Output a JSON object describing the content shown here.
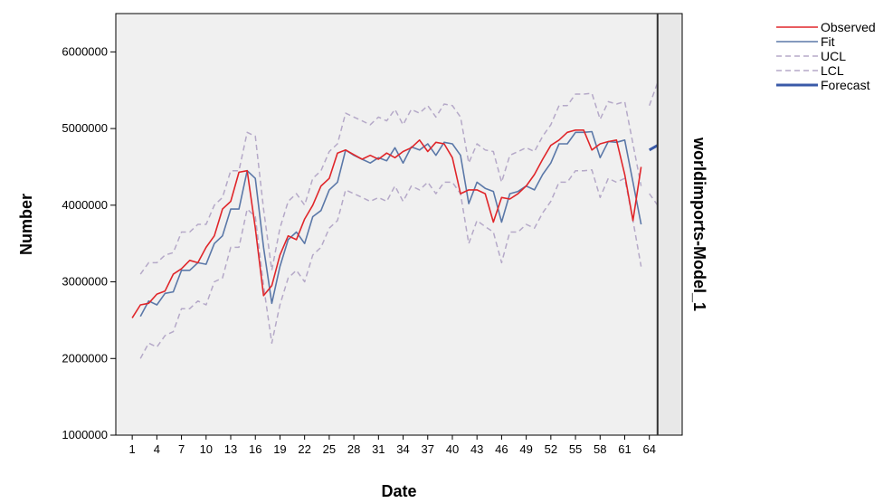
{
  "chart_data": {
    "type": "line",
    "xlabel": "Date",
    "ylabel": "Number",
    "panel_label": "worldimports-Model_1",
    "xlim": [
      -1,
      68
    ],
    "ylim": [
      1000000,
      6500000
    ],
    "x_ticks": [
      1,
      4,
      7,
      10,
      13,
      16,
      19,
      22,
      25,
      28,
      31,
      34,
      37,
      40,
      43,
      46,
      49,
      52,
      55,
      58,
      61,
      64
    ],
    "y_ticks": [
      1000000,
      2000000,
      3000000,
      4000000,
      5000000,
      6000000
    ],
    "forecast_divider_x": 65,
    "grid": false,
    "legend_position": "top-right",
    "colors": {
      "observed": "#e0262a",
      "fit": "#5b78a8",
      "ucl": "#b5a9c8",
      "lcl": "#b5a9c8",
      "forecast": "#3a5aa8",
      "plot_bg": "#f0f0f0",
      "panel_bg": "#e8e8e8"
    },
    "legend": [
      {
        "label": "Observed",
        "style": "solid",
        "color": "#e0262a",
        "width": 1.5
      },
      {
        "label": "Fit",
        "style": "solid",
        "color": "#5b78a8",
        "width": 1.5
      },
      {
        "label": "UCL",
        "style": "dashed",
        "color": "#b5a9c8",
        "width": 1.5
      },
      {
        "label": "LCL",
        "style": "dashed",
        "color": "#b5a9c8",
        "width": 1.5
      },
      {
        "label": "Forecast",
        "style": "solid",
        "color": "#3a5aa8",
        "width": 3
      }
    ],
    "series": [
      {
        "name": "Observed",
        "x_start": 1,
        "values": [
          2530000,
          2700000,
          2720000,
          2840000,
          2880000,
          3100000,
          3170000,
          3280000,
          3250000,
          3450000,
          3600000,
          3950000,
          4050000,
          4430000,
          4450000,
          3700000,
          2820000,
          2950000,
          3350000,
          3600000,
          3550000,
          3820000,
          4000000,
          4250000,
          4350000,
          4680000,
          4720000,
          4660000,
          4600000,
          4650000,
          4600000,
          4680000,
          4620000,
          4700000,
          4750000,
          4850000,
          4700000,
          4820000,
          4800000,
          4620000,
          4150000,
          4200000,
          4200000,
          4150000,
          3780000,
          4100000,
          4080000,
          4150000,
          4250000,
          4400000,
          4600000,
          4780000,
          4850000,
          4950000,
          4980000,
          4980000,
          4720000,
          4800000,
          4830000,
          4850000,
          4400000,
          3800000,
          4500000
        ]
      },
      {
        "name": "Fit",
        "x_start": 2,
        "values": [
          2550000,
          2750000,
          2700000,
          2850000,
          2870000,
          3150000,
          3150000,
          3250000,
          3230000,
          3500000,
          3600000,
          3950000,
          3950000,
          4450000,
          4350000,
          3450000,
          2720000,
          3200000,
          3550000,
          3650000,
          3500000,
          3850000,
          3930000,
          4200000,
          4300000,
          4720000,
          4650000,
          4600000,
          4550000,
          4620000,
          4580000,
          4750000,
          4550000,
          4760000,
          4720000,
          4800000,
          4650000,
          4820000,
          4800000,
          4650000,
          4020000,
          4300000,
          4220000,
          4180000,
          3780000,
          4150000,
          4180000,
          4250000,
          4200000,
          4400000,
          4550000,
          4800000,
          4800000,
          4950000,
          4950000,
          4960000,
          4620000,
          4830000,
          4820000,
          4850000,
          4300000,
          3750000
        ]
      },
      {
        "name": "UCL",
        "x_start": 2,
        "values": [
          3100000,
          3250000,
          3250000,
          3350000,
          3380000,
          3650000,
          3650000,
          3750000,
          3750000,
          4000000,
          4100000,
          4450000,
          4450000,
          4950000,
          4900000,
          3950000,
          3150000,
          3700000,
          4050000,
          4150000,
          4000000,
          4350000,
          4450000,
          4700000,
          4800000,
          5200000,
          5150000,
          5100000,
          5050000,
          5150000,
          5100000,
          5250000,
          5050000,
          5250000,
          5200000,
          5300000,
          5150000,
          5320000,
          5300000,
          5150000,
          4550000,
          4800000,
          4720000,
          4700000,
          4300000,
          4650000,
          4700000,
          4750000,
          4700000,
          4900000,
          5050000,
          5300000,
          5300000,
          5450000,
          5450000,
          5460000,
          5120000,
          5350000,
          5320000,
          5350000,
          4800000,
          4250000
        ]
      },
      {
        "name": "LCL",
        "x_start": 2,
        "values": [
          2000000,
          2200000,
          2150000,
          2300000,
          2350000,
          2650000,
          2650000,
          2750000,
          2700000,
          3000000,
          3050000,
          3450000,
          3450000,
          3950000,
          3850000,
          2950000,
          2200000,
          2700000,
          3050000,
          3150000,
          3000000,
          3350000,
          3450000,
          3700000,
          3800000,
          4200000,
          4150000,
          4100000,
          4050000,
          4100000,
          4050000,
          4250000,
          4050000,
          4250000,
          4200000,
          4300000,
          4150000,
          4300000,
          4300000,
          4150000,
          3500000,
          3800000,
          3720000,
          3650000,
          3250000,
          3650000,
          3650000,
          3750000,
          3700000,
          3900000,
          4050000,
          4300000,
          4300000,
          4450000,
          4450000,
          4460000,
          4100000,
          4350000,
          4300000,
          4350000,
          3800000,
          3200000
        ]
      },
      {
        "name": "Forecast",
        "x_start": 64,
        "values": [
          4720000,
          4780000
        ],
        "ucl": [
          5300000,
          5600000
        ],
        "lcl": [
          4150000,
          4000000
        ]
      }
    ]
  }
}
